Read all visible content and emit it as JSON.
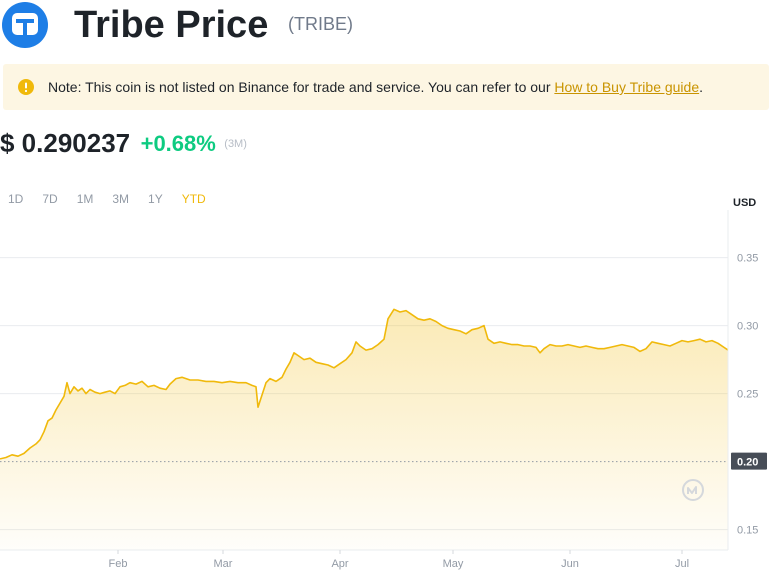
{
  "header": {
    "title": "Tribe Price",
    "ticker": "(TRIBE)"
  },
  "note": {
    "text": "Note: This coin is not listed on Binance for trade and service. You can refer to our ",
    "link": "How to Buy Tribe guide",
    "suffix": "."
  },
  "price": {
    "value": "$ 0.290237",
    "change": "+0.68%",
    "period": "(3M)"
  },
  "ranges": [
    {
      "label": "1D",
      "active": false
    },
    {
      "label": "7D",
      "active": false
    },
    {
      "label": "1M",
      "active": false
    },
    {
      "label": "3M",
      "active": false
    },
    {
      "label": "1Y",
      "active": false
    },
    {
      "label": "YTD",
      "active": true
    }
  ],
  "chart_data": {
    "type": "area",
    "unit": "USD",
    "y_ticks": [
      "0.35",
      "0.30",
      "0.25",
      "0.20",
      "0.15"
    ],
    "x_ticks": [
      "Feb",
      "Mar",
      "Apr",
      "May",
      "Jun",
      "Jul"
    ],
    "ylim": [
      0.135,
      0.385
    ],
    "highlight": {
      "value": "0.20"
    },
    "colors": {
      "line": "#f0b90b",
      "fill": "#f0b90b",
      "grid": "#eaecef"
    },
    "points": [
      [
        0,
        0.202
      ],
      [
        6,
        0.203
      ],
      [
        12,
        0.205
      ],
      [
        18,
        0.204
      ],
      [
        24,
        0.206
      ],
      [
        30,
        0.21
      ],
      [
        36,
        0.213
      ],
      [
        40,
        0.216
      ],
      [
        44,
        0.222
      ],
      [
        48,
        0.23
      ],
      [
        52,
        0.232
      ],
      [
        56,
        0.238
      ],
      [
        60,
        0.243
      ],
      [
        64,
        0.248
      ],
      [
        67,
        0.258
      ],
      [
        70,
        0.25
      ],
      [
        74,
        0.255
      ],
      [
        78,
        0.252
      ],
      [
        82,
        0.254
      ],
      [
        86,
        0.25
      ],
      [
        90,
        0.253
      ],
      [
        95,
        0.251
      ],
      [
        100,
        0.25
      ],
      [
        105,
        0.251
      ],
      [
        110,
        0.252
      ],
      [
        115,
        0.25
      ],
      [
        120,
        0.255
      ],
      [
        125,
        0.256
      ],
      [
        130,
        0.258
      ],
      [
        136,
        0.257
      ],
      [
        142,
        0.259
      ],
      [
        148,
        0.255
      ],
      [
        154,
        0.256
      ],
      [
        160,
        0.254
      ],
      [
        166,
        0.253
      ],
      [
        170,
        0.257
      ],
      [
        176,
        0.261
      ],
      [
        182,
        0.262
      ],
      [
        190,
        0.26
      ],
      [
        198,
        0.26
      ],
      [
        206,
        0.259
      ],
      [
        214,
        0.259
      ],
      [
        222,
        0.258
      ],
      [
        230,
        0.259
      ],
      [
        238,
        0.258
      ],
      [
        246,
        0.258
      ],
      [
        252,
        0.256
      ],
      [
        256,
        0.255
      ],
      [
        258,
        0.24
      ],
      [
        262,
        0.249
      ],
      [
        266,
        0.258
      ],
      [
        270,
        0.261
      ],
      [
        276,
        0.259
      ],
      [
        282,
        0.262
      ],
      [
        286,
        0.268
      ],
      [
        290,
        0.273
      ],
      [
        294,
        0.28
      ],
      [
        298,
        0.278
      ],
      [
        304,
        0.275
      ],
      [
        310,
        0.276
      ],
      [
        316,
        0.273
      ],
      [
        322,
        0.272
      ],
      [
        328,
        0.271
      ],
      [
        334,
        0.269
      ],
      [
        340,
        0.272
      ],
      [
        346,
        0.275
      ],
      [
        352,
        0.28
      ],
      [
        356,
        0.288
      ],
      [
        360,
        0.285
      ],
      [
        366,
        0.282
      ],
      [
        372,
        0.283
      ],
      [
        378,
        0.286
      ],
      [
        384,
        0.29
      ],
      [
        388,
        0.305
      ],
      [
        394,
        0.312
      ],
      [
        400,
        0.31
      ],
      [
        406,
        0.311
      ],
      [
        412,
        0.308
      ],
      [
        418,
        0.305
      ],
      [
        424,
        0.304
      ],
      [
        430,
        0.305
      ],
      [
        436,
        0.303
      ],
      [
        442,
        0.3
      ],
      [
        448,
        0.298
      ],
      [
        454,
        0.297
      ],
      [
        460,
        0.296
      ],
      [
        466,
        0.294
      ],
      [
        472,
        0.297
      ],
      [
        478,
        0.298
      ],
      [
        484,
        0.3
      ],
      [
        488,
        0.29
      ],
      [
        494,
        0.287
      ],
      [
        500,
        0.288
      ],
      [
        506,
        0.287
      ],
      [
        512,
        0.286
      ],
      [
        518,
        0.286
      ],
      [
        524,
        0.285
      ],
      [
        530,
        0.285
      ],
      [
        536,
        0.284
      ],
      [
        540,
        0.28
      ],
      [
        544,
        0.283
      ],
      [
        550,
        0.286
      ],
      [
        556,
        0.285
      ],
      [
        562,
        0.285
      ],
      [
        568,
        0.286
      ],
      [
        574,
        0.285
      ],
      [
        580,
        0.284
      ],
      [
        586,
        0.285
      ],
      [
        592,
        0.284
      ],
      [
        598,
        0.283
      ],
      [
        604,
        0.283
      ],
      [
        610,
        0.284
      ],
      [
        616,
        0.285
      ],
      [
        622,
        0.286
      ],
      [
        628,
        0.285
      ],
      [
        634,
        0.284
      ],
      [
        640,
        0.281
      ],
      [
        646,
        0.283
      ],
      [
        652,
        0.288
      ],
      [
        658,
        0.287
      ],
      [
        664,
        0.286
      ],
      [
        670,
        0.285
      ],
      [
        676,
        0.287
      ],
      [
        682,
        0.289
      ],
      [
        688,
        0.288
      ],
      [
        694,
        0.289
      ],
      [
        700,
        0.29
      ],
      [
        706,
        0.288
      ],
      [
        712,
        0.289
      ],
      [
        718,
        0.287
      ],
      [
        724,
        0.284
      ],
      [
        728,
        0.282
      ]
    ]
  }
}
